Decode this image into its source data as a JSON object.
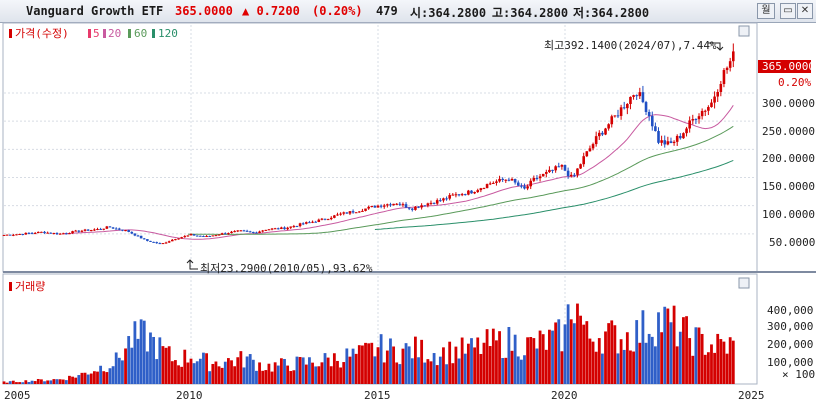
{
  "header": {
    "name": "Vanguard Growth ETF",
    "price": "365.0000",
    "change": "▲ 0.7200",
    "change_pct": "(0.20%)",
    "volume": "479",
    "open": "시:364.2800",
    "high": "고:364.2800",
    "low": "저:364.2800",
    "period_button": "월",
    "colors": {
      "name": "#1a1a1a",
      "up": "#e00000"
    }
  },
  "price_legend": {
    "price_label": "가격(수정)",
    "ma_5": "5",
    "ma_20": "20",
    "ma_60": "60",
    "ma_120": "120",
    "colors": {
      "price": "#d40000",
      "ma5": "#e83a6b",
      "ma20": "#c85aa0",
      "ma60": "#5a9a5a",
      "ma120": "#2a8f6a"
    }
  },
  "volume_legend": {
    "label": "거래량"
  },
  "annotations": {
    "high": "최고392.1400(2024/07),7.44%",
    "low": "최저23.2900(2010/05),93.62%",
    "current_price": "365.0000",
    "current_pct": "0.20%"
  },
  "price_axis": [
    "300.0000",
    "250.0000",
    "200.0000",
    "150.0000",
    "100.0000",
    "50.0000"
  ],
  "volume_axis": [
    "400,000",
    "300,000",
    "200,000",
    "100,000"
  ],
  "volume_unit": "× 100",
  "x_axis": [
    "2005",
    "2010",
    "2015",
    "2020",
    "2025"
  ],
  "chart_data": [
    {
      "type": "line",
      "title": "Vanguard Growth ETF",
      "note": "monthly candlestick price, approximate path",
      "x": [
        2005.0,
        2005.5,
        2006.0,
        2006.5,
        2007.0,
        2007.5,
        2007.8,
        2008.3,
        2008.8,
        2009.2,
        2009.6,
        2010.0,
        2010.4,
        2010.8,
        2011.3,
        2011.7,
        2012.0,
        2012.5,
        2013.0,
        2013.5,
        2014.0,
        2014.5,
        2015.0,
        2015.5,
        2015.9,
        2016.2,
        2016.7,
        2017.0,
        2017.5,
        2018.0,
        2018.5,
        2018.9,
        2019.2,
        2019.6,
        2019.9,
        2020.2,
        2020.5,
        2020.9,
        2021.3,
        2021.6,
        2021.9,
        2022.2,
        2022.5,
        2022.8,
        2023.1,
        2023.5,
        2023.9,
        2024.2,
        2024.5
      ],
      "y": [
        48,
        50,
        53,
        50,
        55,
        58,
        62,
        55,
        38,
        32,
        42,
        48,
        45,
        50,
        55,
        52,
        58,
        60,
        68,
        75,
        85,
        92,
        100,
        105,
        95,
        102,
        110,
        118,
        125,
        140,
        148,
        128,
        148,
        160,
        170,
        148,
        185,
        225,
        255,
        280,
        305,
        270,
        215,
        208,
        225,
        260,
        280,
        330,
        365
      ],
      "xlim": [
        2005,
        2025
      ],
      "ylim": [
        0,
        420
      ]
    },
    {
      "type": "bar",
      "title": "거래량",
      "note": "monthly volume in units of 100 shares",
      "x": [
        2005.0,
        2005.5,
        2006.0,
        2006.5,
        2007.0,
        2007.5,
        2008.0,
        2008.4,
        2008.8,
        2009.2,
        2009.6,
        2010.0,
        2010.5,
        2011.0,
        2011.5,
        2012.0,
        2012.5,
        2013.0,
        2013.5,
        2014.0,
        2014.5,
        2015.0,
        2015.5,
        2016.0,
        2016.5,
        2017.0,
        2017.5,
        2018.0,
        2018.5,
        2019.0,
        2019.5,
        2020.0,
        2020.2,
        2020.6,
        2021.0,
        2021.5,
        2022.0,
        2022.3,
        2022.6,
        2022.9,
        2023.2,
        2023.6,
        2024.0,
        2024.4
      ],
      "y": [
        10000,
        15000,
        20000,
        25000,
        45000,
        80000,
        120000,
        230000,
        250000,
        180000,
        120000,
        150000,
        110000,
        120000,
        130000,
        90000,
        100000,
        110000,
        120000,
        140000,
        150000,
        190000,
        170000,
        180000,
        160000,
        170000,
        180000,
        210000,
        220000,
        200000,
        220000,
        260000,
        470000,
        240000,
        260000,
        240000,
        270000,
        320000,
        330000,
        300000,
        260000,
        220000,
        200000,
        200000
      ],
      "ylim": [
        0,
        500000
      ]
    }
  ]
}
